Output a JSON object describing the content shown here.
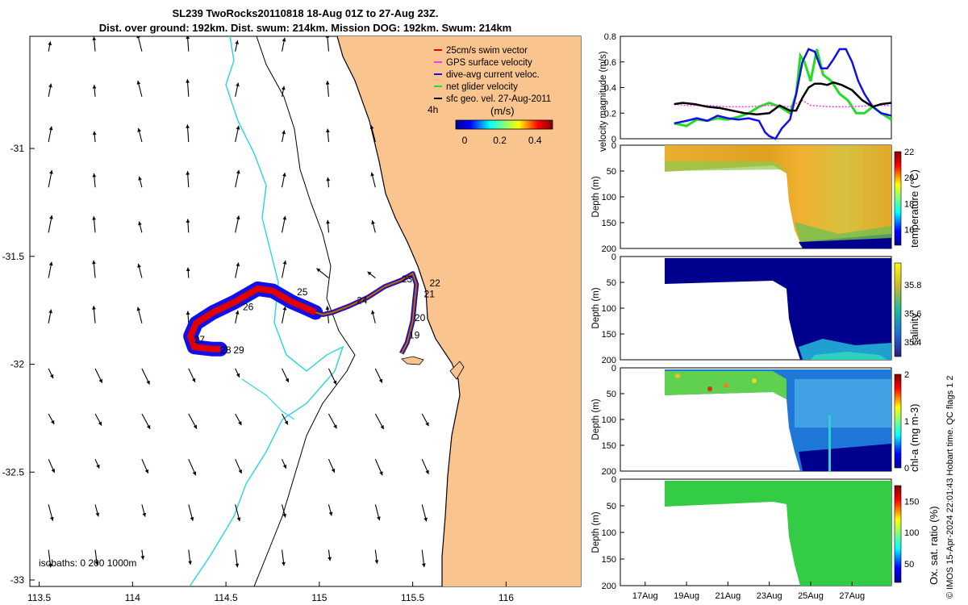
{
  "title": {
    "line1": "SL239 TwoRocks20110818 18-Aug 01Z to 27-Aug 23Z.",
    "line2": "Dist. over ground: 192km. Dist. swum: 214km. Mission DOG: 192km. Swum: 214km"
  },
  "credit": "© IMOS 15-Apr-2024 22:01:43 Hobart time. QC flags 1  2",
  "colors": {
    "land": "#f9c48e",
    "isobath0": "#000000",
    "isobath200": "#000000",
    "isobath1000": "#33d6e0",
    "swim": "#e00000",
    "gps": "#ff33ff",
    "dive_avg": "#1010e8",
    "net": "#22dd22",
    "geo": "#000000"
  },
  "chart_data": [
    {
      "id": "map",
      "type": "scatter",
      "xlim": [
        113.45,
        116.4
      ],
      "ylim": [
        -33.03,
        -30.48
      ],
      "xticks": [
        113.5,
        114,
        114.5,
        115,
        115.5,
        116
      ],
      "xtick_labels": [
        "113.5",
        "114",
        "114.5",
        "115",
        "115.5",
        "116"
      ],
      "yticks": [
        -31,
        -31.5,
        -32,
        -32.5,
        -33
      ],
      "ytick_labels": [
        "-31",
        "-31.5",
        "-32",
        "-32.5",
        "-33"
      ],
      "legend": {
        "position": "top-right",
        "entries": [
          "25cm/s swim vector",
          "GPS surface velocity",
          "dive-avg current veloc.",
          "net glider velocity",
          "sfc geo. vel. 27-Aug-2011"
        ]
      },
      "time_marker": "4h",
      "colorbar": {
        "label": "(m/s)",
        "ticks": [
          0,
          0.2,
          0.4
        ],
        "range": [
          -0.05,
          0.5
        ]
      },
      "isobath_label": "isobaths: 0   200  1000m",
      "track": [
        [
          114.98,
          -31.76
        ],
        [
          114.93,
          -31.74
        ],
        [
          114.85,
          -31.71
        ],
        [
          114.75,
          -31.66
        ],
        [
          114.67,
          -31.65
        ],
        [
          114.55,
          -31.71
        ],
        [
          114.43,
          -31.76
        ],
        [
          114.34,
          -31.81
        ],
        [
          114.31,
          -31.87
        ],
        [
          114.33,
          -31.92
        ],
        [
          114.43,
          -31.93
        ],
        [
          114.47,
          -31.93
        ]
      ],
      "track2": [
        [
          114.98,
          -31.76
        ],
        [
          115.02,
          -31.77
        ],
        [
          115.07,
          -31.76
        ],
        [
          115.16,
          -31.73
        ],
        [
          115.26,
          -31.69
        ],
        [
          115.35,
          -31.64
        ],
        [
          115.44,
          -31.61
        ],
        [
          115.5,
          -31.58
        ],
        [
          115.52,
          -31.63
        ],
        [
          115.51,
          -31.71
        ],
        [
          115.5,
          -31.8
        ],
        [
          115.47,
          -31.9
        ],
        [
          115.44,
          -31.95
        ]
      ],
      "day_labels": [
        {
          "text": "19",
          "lon": 115.48,
          "lat": -31.88
        },
        {
          "text": "20",
          "lon": 115.51,
          "lat": -31.8
        },
        {
          "text": "21",
          "lon": 115.56,
          "lat": -31.69
        },
        {
          "text": "22",
          "lon": 115.59,
          "lat": -31.64
        },
        {
          "text": "23",
          "lon": 115.44,
          "lat": -31.62
        },
        {
          "text": "24",
          "lon": 115.2,
          "lat": -31.72
        },
        {
          "text": "25",
          "lon": 114.88,
          "lat": -31.68
        },
        {
          "text": "26",
          "lon": 114.59,
          "lat": -31.75
        },
        {
          "text": "27",
          "lon": 114.33,
          "lat": -31.9
        },
        {
          "text": "28",
          "lon": 114.47,
          "lat": -31.95
        },
        {
          "text": "29",
          "lon": 114.54,
          "lat": -31.95
        }
      ]
    },
    {
      "id": "velocity",
      "type": "line",
      "ylabel": "velocity magnitude (m/s)",
      "ylim": [
        0,
        0.8
      ],
      "yticks": [
        0,
        0.2,
        0.4,
        0.6,
        0.8
      ],
      "ytick_labels": [
        "0",
        "0.2",
        "0.4",
        "0.6",
        "0.8"
      ],
      "x_range_days": [
        15.8,
        28.9
      ],
      "series": [
        {
          "color": "#22dd22",
          "x": [
            18.4,
            19,
            19.5,
            20,
            20.5,
            21,
            21.5,
            22,
            22.5,
            23,
            23.5,
            24,
            24.3,
            24.5,
            24.7,
            25,
            25.3,
            25.6,
            26,
            26.4,
            26.8,
            27.2,
            27.6,
            28,
            28.4,
            28.9
          ],
          "y": [
            0.12,
            0.1,
            0.15,
            0.14,
            0.16,
            0.15,
            0.17,
            0.2,
            0.25,
            0.28,
            0.25,
            0.2,
            0.35,
            0.65,
            0.6,
            0.45,
            0.7,
            0.5,
            0.45,
            0.35,
            0.3,
            0.2,
            0.2,
            0.25,
            0.2,
            0.15
          ]
        },
        {
          "color": "#ff33ff",
          "x": [
            18.4,
            19,
            20,
            21,
            22,
            23,
            24,
            24.6,
            25,
            26,
            27,
            28,
            28.9
          ],
          "y": [
            0.27,
            0.26,
            0.26,
            0.25,
            0.25,
            0.26,
            0.25,
            0.3,
            0.26,
            0.25,
            0.25,
            0.26,
            0.26
          ]
        },
        {
          "color": "#1010e8",
          "x": [
            18.4,
            19,
            19.5,
            20,
            20.5,
            21,
            21.5,
            22,
            22.5,
            22.8,
            23,
            23.3,
            23.6,
            24,
            24.3,
            24.6,
            24.9,
            25.2,
            25.5,
            25.8,
            26.1,
            26.4,
            26.7,
            27,
            27.3,
            27.6,
            28,
            28.4,
            28.9
          ],
          "y": [
            0.12,
            0.14,
            0.16,
            0.14,
            0.18,
            0.16,
            0.15,
            0.16,
            0.14,
            0.05,
            0.02,
            0.0,
            0.08,
            0.15,
            0.35,
            0.6,
            0.7,
            0.68,
            0.55,
            0.55,
            0.62,
            0.7,
            0.7,
            0.6,
            0.45,
            0.35,
            0.25,
            0.2,
            0.18
          ]
        },
        {
          "color": "#000000",
          "x": [
            18.4,
            18.8,
            19.4,
            20,
            20.6,
            21.2,
            21.8,
            22.4,
            23,
            23.5,
            24,
            24.3,
            24.6,
            24.9,
            25.2,
            25.5,
            25.8,
            26.1,
            26.5,
            27,
            27.5,
            28,
            28.4,
            28.9
          ],
          "y": [
            0.27,
            0.28,
            0.27,
            0.25,
            0.24,
            0.22,
            0.2,
            0.19,
            0.2,
            0.26,
            0.22,
            0.22,
            0.32,
            0.4,
            0.43,
            0.43,
            0.42,
            0.44,
            0.42,
            0.38,
            0.3,
            0.25,
            0.27,
            0.28
          ]
        }
      ]
    },
    {
      "id": "temperature",
      "type": "heatmap",
      "ylabel": "Depth (m)",
      "colorbar_label": "temperature (°C)",
      "clim": [
        14.8,
        22
      ],
      "cticks": [
        16,
        18,
        20,
        22
      ],
      "ctick_labels": [
        "16",
        "18",
        "20",
        "22"
      ],
      "ylim": [
        0,
        200
      ],
      "yticks": [
        0,
        50,
        100,
        150,
        200
      ],
      "ytick_labels": [
        "0",
        "50",
        "100",
        "150",
        "200"
      ]
    },
    {
      "id": "salinity",
      "type": "heatmap",
      "ylabel": "Depth (m)",
      "colorbar_label": "salinity",
      "clim": [
        35.3,
        35.95
      ],
      "cticks": [
        35.4,
        35.6,
        35.8
      ],
      "ctick_labels": [
        "35.4",
        "35.6",
        "35.8"
      ],
      "ylim": [
        0,
        200
      ],
      "yticks": [
        0,
        50,
        100,
        150,
        200
      ],
      "ytick_labels": [
        "0",
        "50",
        "100",
        "150",
        "200"
      ]
    },
    {
      "id": "chla",
      "type": "heatmap",
      "ylabel": "Depth (m)",
      "colorbar_label": "chl-a (mg m-3)",
      "clim": [
        0,
        2
      ],
      "cticks": [
        0,
        1,
        2
      ],
      "ctick_labels": [
        "0",
        "1",
        "2"
      ],
      "ylim": [
        0,
        200
      ],
      "yticks": [
        0,
        50,
        100,
        150,
        200
      ],
      "ytick_labels": [
        "0",
        "50",
        "100",
        "150",
        "200"
      ]
    },
    {
      "id": "oxygen",
      "type": "heatmap",
      "ylabel": "Depth (m)",
      "colorbar_label": "Ox. sat. ratio (%)",
      "clim": [
        20,
        175
      ],
      "cticks": [
        50,
        100,
        150
      ],
      "ctick_labels": [
        "50",
        "100",
        "150"
      ],
      "ylim": [
        0,
        200
      ],
      "yticks": [
        0,
        50,
        100,
        150,
        200
      ],
      "ytick_labels": [
        "0",
        "50",
        "100",
        "150",
        "200"
      ],
      "xticks": [
        17,
        19,
        21,
        23,
        25,
        27
      ],
      "xtick_labels": [
        "17Aug",
        "19Aug",
        "21Aug",
        "23Aug",
        "25Aug",
        "27Aug"
      ]
    }
  ]
}
